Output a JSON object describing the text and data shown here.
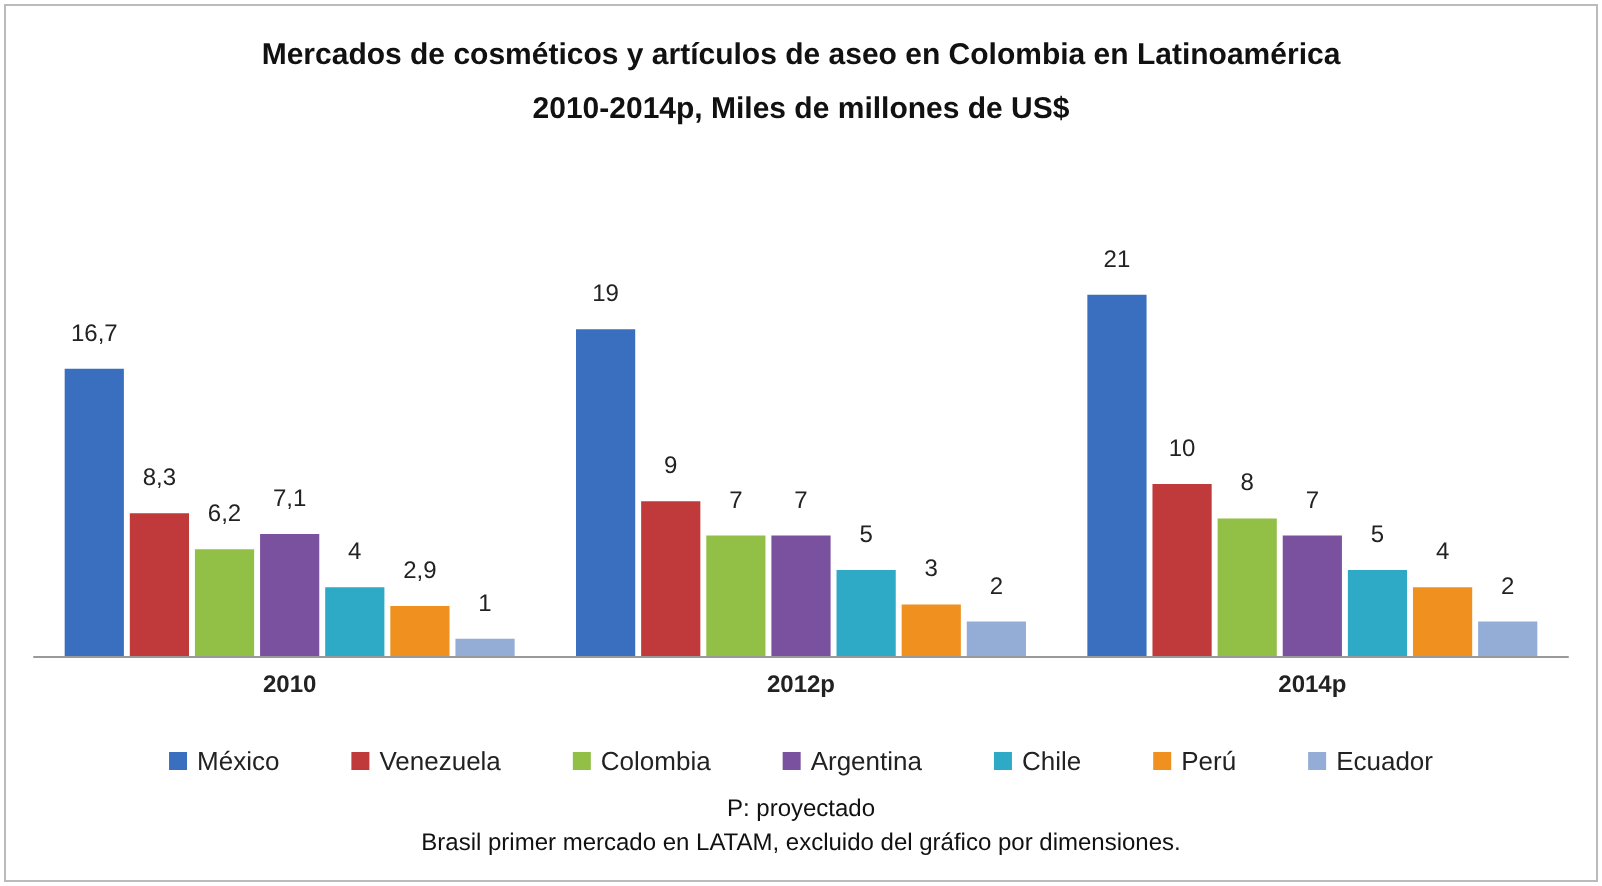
{
  "chart_data": {
    "type": "bar",
    "title": "Mercados de cosméticos y artículos de aseo en Colombia en Latinoamérica",
    "subtitle": "2010-2014p, Miles de millones de US$",
    "categories": [
      "2010",
      "2012p",
      "2014p"
    ],
    "series": [
      {
        "name": "México",
        "color": "#3a6fbf",
        "values": [
          16.7,
          19,
          21
        ],
        "value_labels": [
          "16,7",
          "19",
          "21"
        ]
      },
      {
        "name": "Venezuela",
        "color": "#c0393b",
        "values": [
          8.3,
          9,
          10
        ],
        "value_labels": [
          "8,3",
          "9",
          "10"
        ]
      },
      {
        "name": "Colombia",
        "color": "#92c047",
        "values": [
          6.2,
          7,
          8
        ],
        "value_labels": [
          "6,2",
          "7",
          "8"
        ]
      },
      {
        "name": "Argentina",
        "color": "#7a519e",
        "values": [
          7.1,
          7,
          7
        ],
        "value_labels": [
          "7,1",
          "7",
          "7"
        ]
      },
      {
        "name": "Chile",
        "color": "#2ea9c6",
        "values": [
          4,
          5,
          5
        ],
        "value_labels": [
          "4",
          "5",
          "5"
        ]
      },
      {
        "name": "Perú",
        "color": "#f0901f",
        "values": [
          2.9,
          3,
          4
        ],
        "value_labels": [
          "2,9",
          "3",
          "4"
        ]
      },
      {
        "name": "Ecuador",
        "color": "#93add6",
        "values": [
          1,
          2,
          2
        ],
        "value_labels": [
          "1",
          "2",
          "2"
        ]
      }
    ],
    "legend": "bottom",
    "annotations": [
      "P: proyectado",
      "Brasil primer mercado en LATAM, excluido del gráfico por dimensiones."
    ]
  }
}
